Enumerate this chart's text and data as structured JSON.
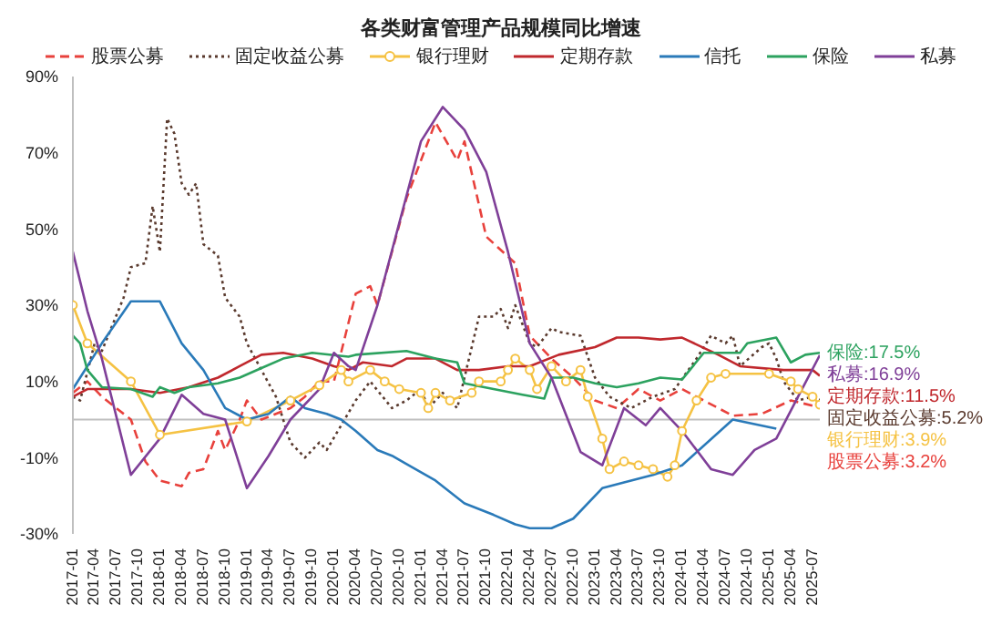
{
  "chart_data": {
    "type": "line",
    "title": "各类财富管理产品规模同比增速",
    "legend": "top",
    "xlim": [
      "2017-01",
      "2025-08"
    ],
    "xticks": [
      "2017-01",
      "2017-04",
      "2017-07",
      "2017-10",
      "2018-01",
      "2018-04",
      "2018-07",
      "2018-10",
      "2019-01",
      "2019-04",
      "2019-07",
      "2019-10",
      "2020-01",
      "2020-04",
      "2020-07",
      "2020-10",
      "2021-01",
      "2021-04",
      "2021-07",
      "2021-10",
      "2022-01",
      "2022-04",
      "2022-07",
      "2022-10",
      "2023-01",
      "2023-04",
      "2023-07",
      "2023-10",
      "2024-01",
      "2024-04",
      "2024-07",
      "2024-10",
      "2025-01",
      "2025-04",
      "2025-07"
    ],
    "ylim": [
      -30,
      90
    ],
    "yticks": [
      {
        "value": -30,
        "label": "-30%"
      },
      {
        "value": -10,
        "label": "-10%"
      },
      {
        "value": 10,
        "label": "10%"
      },
      {
        "value": 30,
        "label": "30%"
      },
      {
        "value": 50,
        "label": "50%"
      },
      {
        "value": 70,
        "label": "70%"
      },
      {
        "value": 90,
        "label": "90%"
      }
    ],
    "ref_lines": [
      {
        "axis": "y",
        "value": 0,
        "color": "#bfbfbf"
      }
    ],
    "series": [
      {
        "name": "股票公募",
        "color": "#e8413c",
        "line_style": "dashed",
        "x": [
          "2017-01",
          "2017-03",
          "2017-05",
          "2017-09",
          "2017-11",
          "2018-01",
          "2018-04",
          "2018-05",
          "2018-07",
          "2018-09",
          "2018-10",
          "2018-12",
          "2019-01",
          "2019-03",
          "2019-07",
          "2019-09",
          "2019-11",
          "2020-01",
          "2020-04",
          "2020-06",
          "2020-07",
          "2020-11",
          "2021-03",
          "2021-06",
          "2021-07",
          "2021-10",
          "2022-02",
          "2022-04",
          "2022-07",
          "2022-10",
          "2023-01",
          "2023-04",
          "2023-07",
          "2023-10",
          "2024-01",
          "2024-08",
          "2024-12",
          "2025-04",
          "2025-08"
        ],
        "values": [
          7,
          10,
          6,
          0,
          -11,
          -16,
          -17.5,
          -14,
          -13,
          -3,
          -8,
          0,
          5,
          0,
          3,
          6,
          10,
          10,
          33,
          35,
          30,
          58,
          78,
          68,
          73,
          48,
          41,
          22,
          16,
          11,
          5,
          3,
          8,
          5,
          8,
          1,
          1.5,
          5,
          3.2
        ],
        "value_labels": [
          null,
          null,
          null,
          null,
          null,
          null,
          null,
          null,
          null,
          null,
          null,
          null,
          null,
          null,
          null,
          null,
          null,
          null,
          null,
          null,
          null,
          null,
          null,
          null,
          null,
          null,
          null,
          null,
          null,
          null,
          null,
          null,
          null,
          null,
          null,
          null,
          null,
          null,
          "股票公募:3.2%"
        ]
      },
      {
        "name": "固定收益公募",
        "color": "#5a3a2e",
        "line_style": "dotted",
        "x": [
          "2017-01",
          "2017-02",
          "2017-04",
          "2017-05",
          "2017-08",
          "2017-09",
          "2017-11",
          "2017-12",
          "2018-01",
          "2018-02",
          "2018-03",
          "2018-04",
          "2018-05",
          "2018-06",
          "2018-07",
          "2018-09",
          "2018-10",
          "2018-12",
          "2019-01",
          "2019-03",
          "2019-05",
          "2019-07",
          "2019-09",
          "2019-11",
          "2019-12",
          "2020-02",
          "2020-04",
          "2020-06",
          "2020-09",
          "2020-11",
          "2021-01",
          "2021-02",
          "2021-04",
          "2021-06",
          "2021-09",
          "2021-11",
          "2021-12",
          "2022-01",
          "2022-02",
          "2022-04",
          "2022-05",
          "2022-07",
          "2022-08",
          "2022-11",
          "2023-01",
          "2023-03",
          "2023-06",
          "2023-09",
          "2023-12",
          "2024-03",
          "2024-05",
          "2024-07",
          "2024-08",
          "2024-09",
          "2024-12",
          "2025-01",
          "2025-02",
          "2025-03",
          "2025-05",
          "2025-07",
          "2025-08"
        ],
        "values": [
          6,
          5,
          20,
          18,
          32,
          40,
          41,
          56,
          44,
          79,
          75,
          62,
          59,
          62,
          46,
          43,
          32,
          27,
          20,
          13,
          6,
          -6,
          -10,
          -6,
          -8,
          -1.5,
          5,
          10,
          3,
          5,
          8,
          3,
          7,
          3,
          27,
          27,
          29,
          24,
          30,
          20,
          19,
          24,
          23,
          22,
          11,
          6,
          3,
          6,
          8,
          16,
          22,
          20,
          22,
          14,
          19,
          20,
          16,
          10,
          5,
          6,
          5.2
        ],
        "value_labels": [
          null,
          null,
          null,
          null,
          null,
          null,
          null,
          null,
          null,
          null,
          null,
          null,
          null,
          null,
          null,
          null,
          null,
          null,
          null,
          null,
          null,
          null,
          null,
          null,
          null,
          null,
          null,
          null,
          null,
          null,
          null,
          null,
          null,
          null,
          null,
          null,
          null,
          null,
          null,
          null,
          null,
          null,
          null,
          null,
          null,
          null,
          null,
          null,
          null,
          null,
          null,
          null,
          null,
          null,
          null,
          null,
          null,
          null,
          null,
          null,
          "固定收益公募:5.2%"
        ]
      },
      {
        "name": "银行理财",
        "color": "#f5c243",
        "marker": "circle",
        "x": [
          "2017-01",
          "2017-03",
          "2017-09",
          "2018-01",
          "2019-01",
          "2019-07",
          "2019-11",
          "2020-02",
          "2020-03",
          "2020-06",
          "2020-08",
          "2020-10",
          "2021-01",
          "2021-02",
          "2021-03",
          "2021-05",
          "2021-08",
          "2021-09",
          "2021-12",
          "2022-01",
          "2022-02",
          "2022-04",
          "2022-05",
          "2022-07",
          "2022-09",
          "2022-11",
          "2022-12",
          "2023-02",
          "2023-03",
          "2023-05",
          "2023-07",
          "2023-09",
          "2023-11",
          "2023-12",
          "2024-01",
          "2024-03",
          "2024-05",
          "2024-07",
          "2025-01",
          "2025-04",
          "2025-05",
          "2025-07",
          "2025-08"
        ],
        "values": [
          30,
          20,
          10,
          -4,
          -0.5,
          5,
          9,
          13,
          10,
          13,
          10,
          8,
          7,
          3,
          7,
          5,
          7,
          10,
          10,
          13,
          16,
          13,
          8,
          14,
          10,
          13,
          6,
          -5,
          -13,
          -11,
          -12,
          -13,
          -15,
          -12,
          -3,
          5,
          11,
          12,
          12,
          10,
          8,
          6,
          3.9
        ],
        "value_labels": [
          null,
          null,
          null,
          null,
          null,
          null,
          null,
          null,
          null,
          null,
          null,
          null,
          null,
          null,
          null,
          null,
          null,
          null,
          null,
          null,
          null,
          null,
          null,
          null,
          null,
          null,
          null,
          null,
          null,
          null,
          null,
          null,
          null,
          null,
          null,
          null,
          null,
          null,
          null,
          null,
          null,
          null,
          "银行理财:3.9%"
        ]
      },
      {
        "name": "定期存款",
        "color": "#c0282d",
        "x": [
          "2017-01",
          "2017-03",
          "2017-09",
          "2018-01",
          "2018-05",
          "2018-09",
          "2018-12",
          "2019-03",
          "2019-06",
          "2019-10",
          "2020-01",
          "2020-03",
          "2020-05",
          "2020-09",
          "2020-11",
          "2021-03",
          "2021-06",
          "2021-09",
          "2022-01",
          "2022-04",
          "2022-08",
          "2023-01",
          "2023-04",
          "2023-07",
          "2023-10",
          "2024-01",
          "2024-06",
          "2024-09",
          "2025-03",
          "2025-07",
          "2025-08"
        ],
        "values": [
          6,
          8,
          8,
          7,
          8.5,
          11,
          14,
          17,
          17.5,
          16,
          14,
          13,
          15,
          14,
          16,
          16,
          13,
          13,
          14,
          14,
          17,
          19,
          21.5,
          21.5,
          21,
          21.5,
          17,
          14,
          13,
          13,
          11.5
        ],
        "value_labels": [
          null,
          null,
          null,
          null,
          null,
          null,
          null,
          null,
          null,
          null,
          null,
          null,
          null,
          null,
          null,
          null,
          null,
          null,
          null,
          null,
          null,
          null,
          null,
          null,
          null,
          null,
          null,
          null,
          null,
          null,
          "定期存款:11.5%"
        ]
      },
      {
        "name": "信托",
        "color": "#2a7ab9",
        "x": [
          "2017-01",
          "2017-05",
          "2017-09",
          "2018-01",
          "2018-04",
          "2018-07",
          "2018-10",
          "2019-01",
          "2019-04",
          "2019-07",
          "2019-09",
          "2019-12",
          "2020-02",
          "2020-04",
          "2020-07",
          "2020-09",
          "2021-03",
          "2021-07",
          "2021-11",
          "2022-02",
          "2022-04",
          "2022-07",
          "2022-10",
          "2023-02",
          "2023-05",
          "2023-09",
          "2024-01",
          "2024-08",
          "2025-02"
        ],
        "values": [
          8,
          20,
          31,
          31,
          20,
          13,
          3,
          0,
          1.5,
          6,
          3,
          1.5,
          0,
          -3,
          -8,
          -9.5,
          -16,
          -22,
          -25,
          -27.5,
          -28.5,
          -28.5,
          -26,
          -18,
          -16.5,
          -14.5,
          -12,
          0,
          -2.4
        ]
      },
      {
        "name": "保险",
        "color": "#2ca25f",
        "x": [
          "2017-01",
          "2017-02",
          "2017-03",
          "2017-05",
          "2017-09",
          "2017-12",
          "2018-01",
          "2018-03",
          "2018-05",
          "2018-09",
          "2018-12",
          "2019-03",
          "2019-06",
          "2019-10",
          "2020-03",
          "2020-04",
          "2020-11",
          "2021-03",
          "2021-06",
          "2021-07",
          "2021-11",
          "2022-03",
          "2022-06",
          "2022-07",
          "2022-10",
          "2023-01",
          "2023-04",
          "2023-07",
          "2023-10",
          "2024-01",
          "2024-04",
          "2024-09",
          "2024-10",
          "2025-02",
          "2025-04",
          "2025-06",
          "2025-08"
        ],
        "values": [
          22,
          20,
          13,
          8.5,
          8,
          6,
          8.5,
          7,
          8.5,
          9.5,
          11,
          13.5,
          16,
          17.5,
          16.5,
          17,
          18,
          16,
          15,
          9.5,
          8,
          6.5,
          5.5,
          11,
          11,
          9.5,
          8.5,
          9.5,
          11,
          10.5,
          17.5,
          17.5,
          20,
          21.5,
          15,
          17,
          17.5
        ],
        "value_labels": [
          null,
          null,
          null,
          null,
          null,
          null,
          null,
          null,
          null,
          null,
          null,
          null,
          null,
          null,
          null,
          null,
          null,
          null,
          null,
          null,
          null,
          null,
          null,
          null,
          null,
          null,
          null,
          null,
          null,
          null,
          null,
          null,
          null,
          null,
          null,
          null,
          "保险:17.5%"
        ]
      },
      {
        "name": "私募",
        "color": "#7f3f98",
        "x": [
          "2017-01",
          "2017-03",
          "2017-05",
          "2017-09",
          "2018-01",
          "2018-04",
          "2018-07",
          "2018-10",
          "2019-01",
          "2019-04",
          "2019-07",
          "2019-11",
          "2020-01",
          "2020-03",
          "2020-04",
          "2020-07",
          "2021-01",
          "2021-04",
          "2021-07",
          "2021-10",
          "2022-01",
          "2022-04",
          "2022-07",
          "2022-11",
          "2023-02",
          "2023-05",
          "2023-08",
          "2023-10",
          "2024-01",
          "2024-05",
          "2024-08",
          "2024-11",
          "2025-02",
          "2025-05",
          "2025-08"
        ],
        "values": [
          44,
          28.5,
          16,
          -14.5,
          -5,
          6.5,
          1.5,
          0,
          -18,
          -9.5,
          0,
          8,
          17.5,
          14,
          13,
          30,
          73,
          82,
          76,
          65,
          44,
          20,
          11,
          -8.5,
          -12,
          3,
          -1.5,
          3,
          -3,
          -13,
          -14.5,
          -8,
          -5,
          6,
          16.9
        ],
        "value_labels": [
          null,
          null,
          null,
          null,
          null,
          null,
          null,
          null,
          null,
          null,
          null,
          null,
          null,
          null,
          null,
          null,
          null,
          null,
          null,
          null,
          null,
          null,
          null,
          null,
          null,
          null,
          null,
          null,
          null,
          null,
          null,
          null,
          null,
          null,
          "私募:16.9%"
        ]
      }
    ]
  }
}
